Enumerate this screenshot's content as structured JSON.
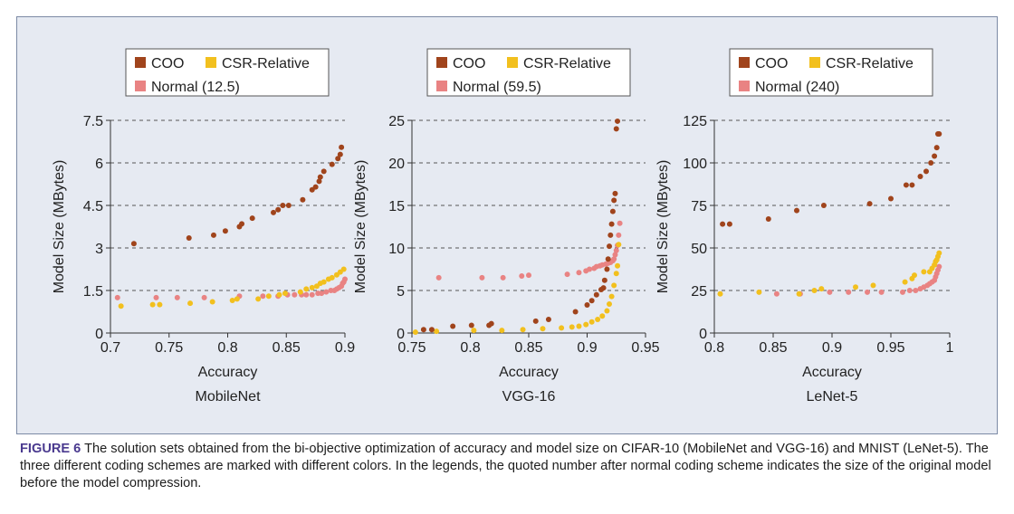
{
  "caption": {
    "label": "FIGURE 6",
    "text": " The solution sets obtained from the bi-objective optimization of accuracy and model size on CIFAR-10 (MobileNet and VGG-16) and MNIST (LeNet-5). The three different coding schemes are marked with different colors. In the legends, the quoted number after normal coding scheme indicates the size of the original model before the model compression."
  },
  "colors": {
    "coo": "#a0441c",
    "csr": "#f2c01e",
    "normal": "#e98383",
    "panel": "#e6eaf2",
    "caption_label": "#4a3a8f"
  },
  "chart_data": [
    {
      "type": "scatter",
      "title": "MobileNet",
      "xlabel": "Accuracy",
      "ylabel": "Model Size (MBytes)",
      "xlim": [
        0.7,
        0.9
      ],
      "ylim": [
        0,
        7.5
      ],
      "xticks": [
        "0.7",
        "0.75",
        "0.8",
        "0.85",
        "0.9"
      ],
      "yticks": [
        "0",
        "1.5",
        "3",
        "4.5",
        "6",
        "7.5"
      ],
      "grid": "horizontal dashed",
      "legend_position": "top",
      "series": [
        {
          "name": "COO",
          "color": "coo",
          "x": [
            0.72,
            0.767,
            0.788,
            0.798,
            0.81,
            0.812,
            0.821,
            0.839,
            0.843,
            0.847,
            0.852,
            0.864,
            0.872,
            0.875,
            0.878,
            0.879,
            0.882,
            0.889,
            0.894,
            0.896,
            0.897
          ],
          "y": [
            3.15,
            3.35,
            3.45,
            3.6,
            3.75,
            3.85,
            4.05,
            4.25,
            4.35,
            4.5,
            4.5,
            4.7,
            5.05,
            5.15,
            5.35,
            5.5,
            5.7,
            5.95,
            6.15,
            6.3,
            6.55
          ]
        },
        {
          "name": "CSR-Relative",
          "color": "csr",
          "x": [
            0.709,
            0.736,
            0.742,
            0.768,
            0.787,
            0.804,
            0.808,
            0.826,
            0.835,
            0.844,
            0.849,
            0.862,
            0.867,
            0.872,
            0.876,
            0.879,
            0.882,
            0.886,
            0.889,
            0.893,
            0.896,
            0.899
          ],
          "y": [
            0.95,
            1.0,
            1.0,
            1.05,
            1.1,
            1.15,
            1.2,
            1.2,
            1.3,
            1.35,
            1.4,
            1.45,
            1.55,
            1.6,
            1.65,
            1.75,
            1.8,
            1.9,
            1.95,
            2.05,
            2.15,
            2.25
          ]
        },
        {
          "name": "Normal (12.5)",
          "color": "normal",
          "x": [
            0.706,
            0.739,
            0.757,
            0.78,
            0.81,
            0.83,
            0.843,
            0.851,
            0.857,
            0.863,
            0.867,
            0.872,
            0.877,
            0.88,
            0.884,
            0.888,
            0.891,
            0.893,
            0.895,
            0.897,
            0.898,
            0.899,
            0.9
          ],
          "y": [
            1.25,
            1.25,
            1.25,
            1.25,
            1.3,
            1.3,
            1.3,
            1.35,
            1.35,
            1.35,
            1.35,
            1.35,
            1.4,
            1.4,
            1.45,
            1.5,
            1.5,
            1.55,
            1.6,
            1.65,
            1.75,
            1.8,
            1.9
          ]
        }
      ]
    },
    {
      "type": "scatter",
      "title": "VGG-16",
      "xlabel": "Accuracy",
      "ylabel": "Model Size (MBytes)",
      "xlim": [
        0.75,
        0.95
      ],
      "ylim": [
        0,
        25
      ],
      "xticks": [
        "0.75",
        "0.8",
        "0.85",
        "0.9",
        "0.95"
      ],
      "yticks": [
        "0",
        "5",
        "10",
        "15",
        "20",
        "25"
      ],
      "grid": "horizontal dashed",
      "legend_position": "top",
      "series": [
        {
          "name": "COO",
          "color": "coo",
          "x": [
            0.76,
            0.767,
            0.785,
            0.801,
            0.816,
            0.818,
            0.856,
            0.867,
            0.89,
            0.9,
            0.904,
            0.908,
            0.912,
            0.914,
            0.915,
            0.917,
            0.918,
            0.919,
            0.92,
            0.921,
            0.922,
            0.923,
            0.924,
            0.925,
            0.926
          ],
          "y": [
            0.4,
            0.4,
            0.8,
            0.9,
            0.9,
            1.1,
            1.4,
            1.6,
            2.5,
            3.3,
            3.8,
            4.5,
            5.1,
            5.3,
            6.2,
            7.5,
            8.7,
            10.2,
            11.5,
            12.8,
            14.3,
            15.6,
            16.4,
            24.0,
            24.9
          ]
        },
        {
          "name": "CSR-Relative",
          "color": "csr",
          "x": [
            0.753,
            0.771,
            0.803,
            0.827,
            0.845,
            0.862,
            0.878,
            0.887,
            0.893,
            0.899,
            0.904,
            0.909,
            0.913,
            0.917,
            0.919,
            0.921,
            0.923,
            0.925,
            0.926,
            0.927
          ],
          "y": [
            0.1,
            0.2,
            0.3,
            0.3,
            0.4,
            0.5,
            0.6,
            0.7,
            0.8,
            1.0,
            1.3,
            1.6,
            2.0,
            2.6,
            3.4,
            4.3,
            5.6,
            7.0,
            7.9,
            10.4
          ]
        },
        {
          "name": "Normal (59.5)",
          "color": "normal",
          "x": [
            0.773,
            0.81,
            0.828,
            0.844,
            0.85,
            0.883,
            0.893,
            0.899,
            0.902,
            0.906,
            0.908,
            0.911,
            0.913,
            0.916,
            0.918,
            0.92,
            0.922,
            0.923,
            0.924,
            0.925,
            0.926,
            0.927,
            0.928
          ],
          "y": [
            6.5,
            6.5,
            6.5,
            6.7,
            6.8,
            6.9,
            7.1,
            7.3,
            7.5,
            7.6,
            7.8,
            7.9,
            8.0,
            8.1,
            8.2,
            8.3,
            8.5,
            8.7,
            9.2,
            9.7,
            10.3,
            11.5,
            12.9
          ]
        }
      ]
    },
    {
      "type": "scatter",
      "title": "LeNet-5",
      "xlabel": "Accuracy",
      "ylabel": "Model Size (MBytes)",
      "xlim": [
        0.8,
        1
      ],
      "ylim": [
        0,
        125
      ],
      "xticks": [
        "0.8",
        "0.85",
        "0.9",
        "0.95",
        "1"
      ],
      "yticks": [
        "0",
        "25",
        "50",
        "75",
        "100",
        "125"
      ],
      "grid": "horizontal dashed",
      "legend_position": "top",
      "series": [
        {
          "name": "COO",
          "color": "coo",
          "x": [
            0.807,
            0.813,
            0.846,
            0.87,
            0.893,
            0.932,
            0.95,
            0.963,
            0.968,
            0.975,
            0.98,
            0.984,
            0.987,
            0.989,
            0.99,
            0.991
          ],
          "y": [
            64,
            64,
            67,
            72,
            75,
            76,
            79,
            87,
            87,
            92,
            95,
            100,
            104,
            109,
            117,
            117
          ]
        },
        {
          "name": "CSR-Relative",
          "color": "csr",
          "x": [
            0.805,
            0.838,
            0.872,
            0.885,
            0.891,
            0.92,
            0.935,
            0.962,
            0.968,
            0.97,
            0.978,
            0.983,
            0.985,
            0.987,
            0.988,
            0.989,
            0.99,
            0.991
          ],
          "y": [
            23,
            24,
            23,
            25,
            26,
            27,
            28,
            30,
            32,
            34,
            36,
            36,
            38,
            40,
            42,
            43,
            45,
            47
          ]
        },
        {
          "name": "Normal (240)",
          "color": "normal",
          "x": [
            0.853,
            0.873,
            0.898,
            0.914,
            0.93,
            0.942,
            0.96,
            0.966,
            0.971,
            0.975,
            0.978,
            0.981,
            0.983,
            0.985,
            0.987,
            0.988,
            0.989,
            0.99,
            0.991
          ],
          "y": [
            23,
            23,
            24,
            24,
            24,
            24,
            24,
            25,
            25,
            26,
            27,
            28,
            29,
            30,
            31,
            33,
            35,
            37,
            39
          ]
        }
      ]
    }
  ]
}
